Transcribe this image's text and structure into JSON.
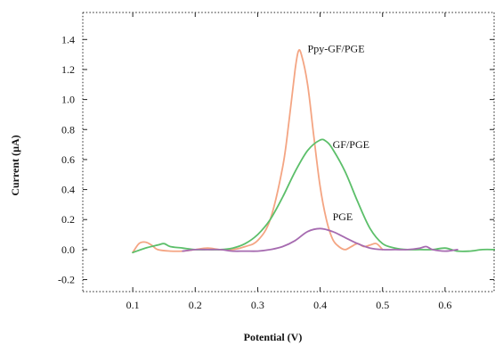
{
  "chart_data": {
    "type": "line",
    "title": "",
    "xlabel": "Potential (V)",
    "ylabel": "Current (µA)",
    "xlim": [
      0.02,
      0.68
    ],
    "ylim": [
      -0.28,
      1.58
    ],
    "xticks": [
      0.1,
      0.2,
      0.3,
      0.4,
      0.5,
      0.6
    ],
    "xtick_labels": [
      "0.1",
      "0.2",
      "0.3",
      "0.4",
      "0.5",
      "0.6"
    ],
    "yticks": [
      -0.2,
      0.0,
      0.2,
      0.4,
      0.6,
      0.8,
      1.0,
      1.2,
      1.4
    ],
    "ytick_labels": [
      "-0.2",
      "0.0",
      "0.2",
      "0.4",
      "0.6",
      "0.8",
      "1.0",
      "1.2",
      "1.4"
    ],
    "grid": false,
    "legend": "none",
    "series": [
      {
        "name": "Ppy-GF/PGE",
        "color": "#f4a583",
        "points": [
          [
            0.1,
            -0.02
          ],
          [
            0.11,
            0.04
          ],
          [
            0.12,
            0.05
          ],
          [
            0.13,
            0.03
          ],
          [
            0.14,
            0.0
          ],
          [
            0.16,
            -0.01
          ],
          [
            0.18,
            -0.01
          ],
          [
            0.2,
            0.0
          ],
          [
            0.22,
            0.01
          ],
          [
            0.24,
            0.0
          ],
          [
            0.26,
            0.0
          ],
          [
            0.28,
            0.02
          ],
          [
            0.3,
            0.06
          ],
          [
            0.32,
            0.2
          ],
          [
            0.34,
            0.55
          ],
          [
            0.35,
            0.85
          ],
          [
            0.36,
            1.2
          ],
          [
            0.365,
            1.32
          ],
          [
            0.37,
            1.3
          ],
          [
            0.38,
            1.1
          ],
          [
            0.39,
            0.75
          ],
          [
            0.4,
            0.42
          ],
          [
            0.41,
            0.2
          ],
          [
            0.42,
            0.07
          ],
          [
            0.43,
            0.02
          ],
          [
            0.44,
            0.0
          ],
          [
            0.45,
            0.02
          ],
          [
            0.46,
            0.04
          ],
          [
            0.47,
            0.02
          ],
          [
            0.48,
            0.03
          ],
          [
            0.49,
            0.04
          ],
          [
            0.5,
            0.0
          ]
        ]
      },
      {
        "name": "GF/PGE",
        "color": "#5cbf6a",
        "points": [
          [
            0.1,
            -0.02
          ],
          [
            0.12,
            0.01
          ],
          [
            0.14,
            0.03
          ],
          [
            0.15,
            0.04
          ],
          [
            0.16,
            0.02
          ],
          [
            0.18,
            0.01
          ],
          [
            0.2,
            0.0
          ],
          [
            0.22,
            0.0
          ],
          [
            0.24,
            0.0
          ],
          [
            0.26,
            0.01
          ],
          [
            0.28,
            0.04
          ],
          [
            0.3,
            0.1
          ],
          [
            0.32,
            0.2
          ],
          [
            0.34,
            0.35
          ],
          [
            0.36,
            0.52
          ],
          [
            0.38,
            0.66
          ],
          [
            0.4,
            0.73
          ],
          [
            0.41,
            0.72
          ],
          [
            0.42,
            0.67
          ],
          [
            0.44,
            0.52
          ],
          [
            0.46,
            0.32
          ],
          [
            0.48,
            0.14
          ],
          [
            0.5,
            0.04
          ],
          [
            0.52,
            0.01
          ],
          [
            0.54,
            0.0
          ],
          [
            0.56,
            0.0
          ],
          [
            0.58,
            0.0
          ],
          [
            0.6,
            0.01
          ],
          [
            0.62,
            -0.01
          ],
          [
            0.64,
            -0.01
          ],
          [
            0.66,
            0.0
          ],
          [
            0.68,
            0.0
          ]
        ]
      },
      {
        "name": "PGE",
        "color": "#a66bb0",
        "points": [
          [
            0.18,
            -0.01
          ],
          [
            0.2,
            0.0
          ],
          [
            0.22,
            0.0
          ],
          [
            0.24,
            0.0
          ],
          [
            0.26,
            -0.01
          ],
          [
            0.28,
            -0.01
          ],
          [
            0.3,
            -0.01
          ],
          [
            0.32,
            0.0
          ],
          [
            0.34,
            0.02
          ],
          [
            0.36,
            0.06
          ],
          [
            0.38,
            0.12
          ],
          [
            0.4,
            0.14
          ],
          [
            0.42,
            0.12
          ],
          [
            0.44,
            0.08
          ],
          [
            0.46,
            0.04
          ],
          [
            0.48,
            0.01
          ],
          [
            0.5,
            0.0
          ],
          [
            0.52,
            0.0
          ],
          [
            0.54,
            0.0
          ],
          [
            0.56,
            0.01
          ],
          [
            0.57,
            0.02
          ],
          [
            0.58,
            0.0
          ],
          [
            0.6,
            -0.01
          ],
          [
            0.62,
            0.0
          ]
        ]
      }
    ],
    "annotations": [
      {
        "text": "Ppy-GF/PGE",
        "x": 0.38,
        "y": 1.34
      },
      {
        "text": "GF/PGE",
        "x": 0.42,
        "y": 0.7
      },
      {
        "text": "PGE",
        "x": 0.42,
        "y": 0.22
      }
    ]
  }
}
